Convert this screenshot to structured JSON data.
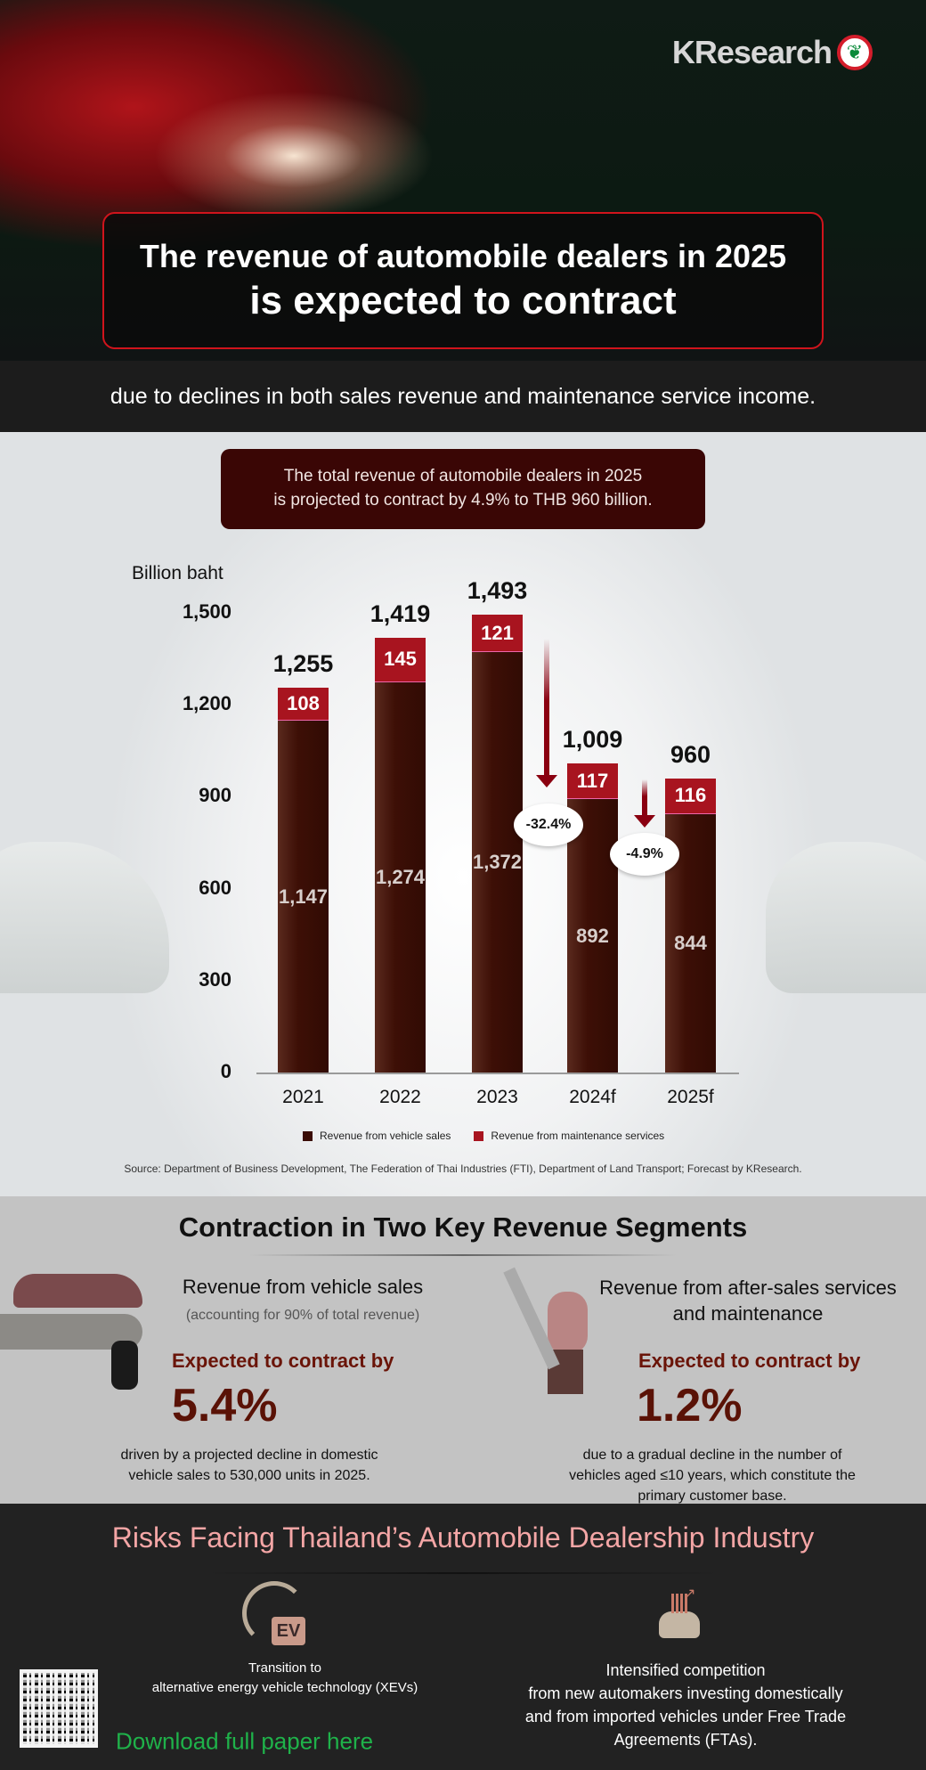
{
  "header": {
    "logo": "KResearch",
    "title_line1": "The revenue of automobile dealers in 2025",
    "title_line2": "is expected to contract",
    "subtitle": "due to declines in both sales revenue and maintenance service income."
  },
  "note": {
    "line1": "The total revenue of automobile dealers in 2025",
    "line2": "is projected to contract by 4.9% to THB 960 billion."
  },
  "chart_data": {
    "type": "bar",
    "stacked": true,
    "ylabel": "Billion baht",
    "ylim": [
      0,
      1500
    ],
    "yticks": [
      "0",
      "300",
      "600",
      "900",
      "1,200",
      "1,500"
    ],
    "categories": [
      "2021",
      "2022",
      "2023",
      "2024f",
      "2025f"
    ],
    "series": [
      {
        "name": "Revenue from vehicle sales",
        "color": "#3a0c05",
        "values": [
          1147,
          1274,
          1372,
          892,
          844
        ],
        "labels": [
          "1,147",
          "1,274",
          "1,372",
          "892",
          "844"
        ]
      },
      {
        "name": "Revenue from maintenance services",
        "color": "#a8141f",
        "values": [
          108,
          145,
          121,
          117,
          116
        ],
        "labels": [
          "108",
          "145",
          "121",
          "117",
          "116"
        ]
      }
    ],
    "totals": [
      "1,255",
      "1,419",
      "1,493",
      "1,009",
      "960"
    ],
    "annotations": [
      {
        "text": "-32.4%",
        "between": [
          "2023",
          "2024f"
        ]
      },
      {
        "text": "-4.9%",
        "between": [
          "2024f",
          "2025f"
        ]
      }
    ],
    "legend_position": "bottom"
  },
  "source": "Source: Department of Business Development, The Federation of Thai Industries (FTI), Department of Land Transport; Forecast by KResearch.",
  "segments": {
    "title": "Contraction in Two Key Revenue Segments",
    "left": {
      "heading": "Revenue from vehicle sales",
      "sub": "(accounting for 90% of total revenue)",
      "expected": "Expected to contract by",
      "pct": "5.4%",
      "desc1": "driven by a projected decline in domestic",
      "desc2": "vehicle sales to 530,000 units in 2025."
    },
    "right": {
      "heading1": "Revenue from after-sales services",
      "heading2": "and maintenance",
      "expected": "Expected to contract by",
      "pct": "1.2%",
      "desc1": "due to a gradual decline in the number of",
      "desc2": "vehicles aged ≤10 years, which constitute the",
      "desc3": "primary customer base."
    }
  },
  "risks": {
    "title": "Risks Facing Thailand’s Automobile Dealership Industry",
    "ev_badge": "EV",
    "left1": "Transition to",
    "left2": "alternative energy vehicle technology (XEVs)",
    "right1": "Intensified competition",
    "right2": "from new automakers investing domestically",
    "right3": "and from imported vehicles under Free Trade",
    "right4": "Agreements (FTAs).",
    "download": "Download full paper here"
  }
}
